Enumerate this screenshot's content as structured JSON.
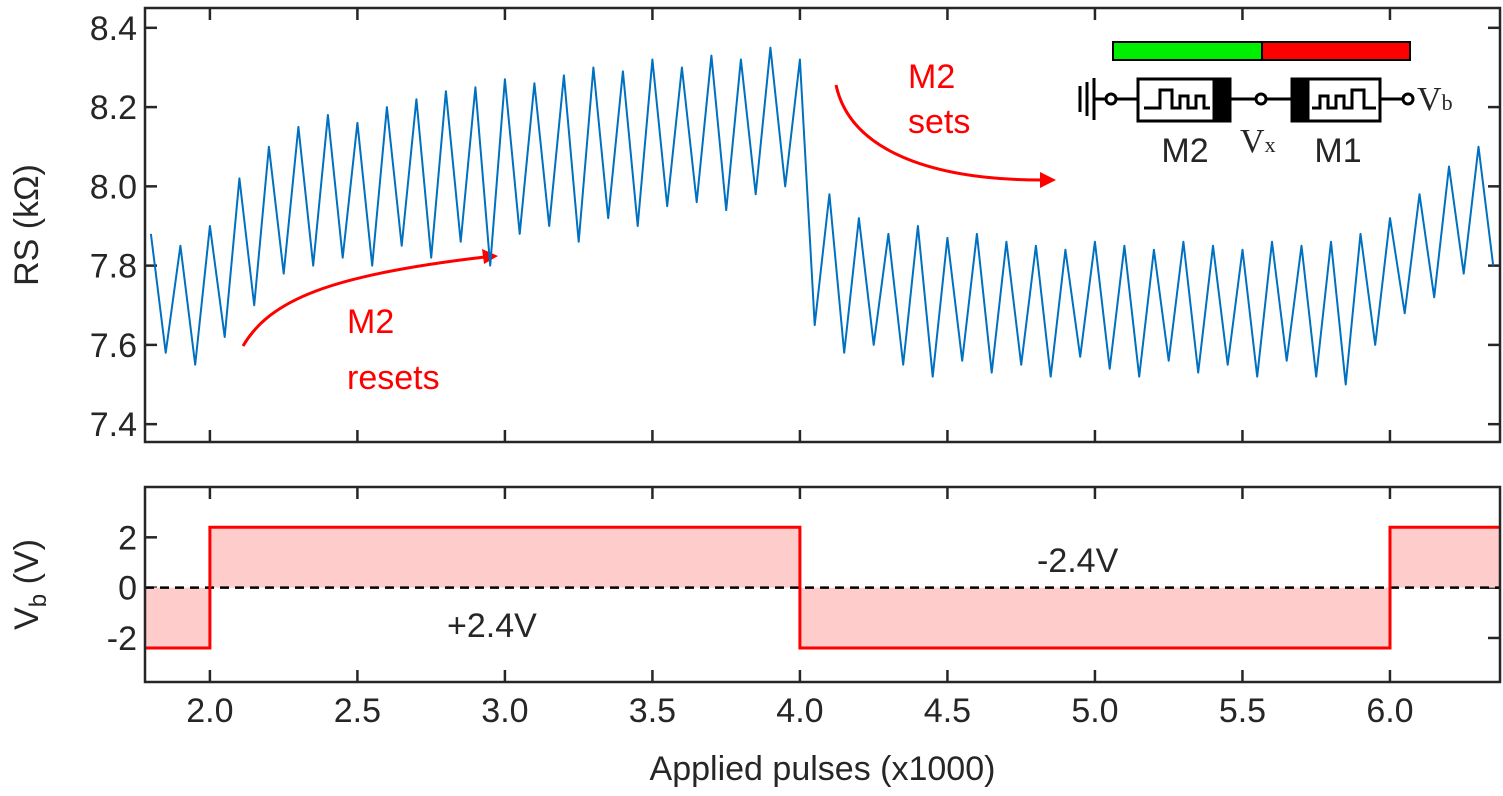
{
  "chart_data": [
    {
      "type": "line",
      "ylabel": "RS (kΩ)",
      "x": [
        1.8,
        1.85,
        1.9,
        1.95,
        2.0,
        2.05,
        2.1,
        2.15,
        2.2,
        2.25,
        2.3,
        2.35,
        2.4,
        2.45,
        2.5,
        2.55,
        2.6,
        2.65,
        2.7,
        2.75,
        2.8,
        2.85,
        2.9,
        2.95,
        3.0,
        3.05,
        3.1,
        3.15,
        3.2,
        3.25,
        3.3,
        3.35,
        3.4,
        3.45,
        3.5,
        3.55,
        3.6,
        3.65,
        3.7,
        3.75,
        3.8,
        3.85,
        3.9,
        3.95,
        4.0,
        4.05,
        4.1,
        4.15,
        4.2,
        4.25,
        4.3,
        4.35,
        4.4,
        4.45,
        4.5,
        4.55,
        4.6,
        4.65,
        4.7,
        4.75,
        4.8,
        4.85,
        4.9,
        4.95,
        5.0,
        5.05,
        5.1,
        5.15,
        5.2,
        5.25,
        5.3,
        5.35,
        5.4,
        5.45,
        5.5,
        5.55,
        5.6,
        5.65,
        5.7,
        5.75,
        5.8,
        5.85,
        5.9,
        5.95,
        6.0,
        6.05,
        6.1,
        6.15,
        6.2,
        6.25,
        6.3,
        6.35
      ],
      "series": [
        {
          "color": "#0070c0",
          "values": [
            7.88,
            7.58,
            7.85,
            7.55,
            7.9,
            7.62,
            8.02,
            7.7,
            8.1,
            7.78,
            8.15,
            7.8,
            8.18,
            7.82,
            8.16,
            7.8,
            8.2,
            7.85,
            8.22,
            7.82,
            8.24,
            7.86,
            8.25,
            7.8,
            8.27,
            7.88,
            8.26,
            7.9,
            8.28,
            7.86,
            8.3,
            7.92,
            8.29,
            7.9,
            8.32,
            7.95,
            8.3,
            7.96,
            8.33,
            7.94,
            8.32,
            7.98,
            8.35,
            8.0,
            8.32,
            7.65,
            7.98,
            7.58,
            7.92,
            7.6,
            7.88,
            7.55,
            7.9,
            7.52,
            7.87,
            7.56,
            7.88,
            7.53,
            7.86,
            7.55,
            7.85,
            7.52,
            7.84,
            7.57,
            7.86,
            7.54,
            7.85,
            7.52,
            7.84,
            7.56,
            7.86,
            7.53,
            7.85,
            7.55,
            7.84,
            7.52,
            7.86,
            7.56,
            7.85,
            7.52,
            7.86,
            7.5,
            7.88,
            7.6,
            7.92,
            7.68,
            7.98,
            7.72,
            8.05,
            7.78,
            8.1,
            7.8
          ]
        }
      ],
      "xlim": [
        1.78,
        6.373
      ],
      "ylim": [
        7.355,
        8.45
      ],
      "yticks": [
        7.4,
        7.6,
        7.8,
        {
          "value": 8,
          "label": "8.0"
        },
        8.2,
        8.4
      ],
      "annotations": [
        [
          "M2",
          "resets"
        ],
        [
          "M2",
          "sets"
        ]
      ],
      "annotation_color": "#ff0000",
      "inset": {
        "labels": [
          "M2",
          "M1"
        ],
        "vx": [
          "V",
          "x"
        ],
        "vb": [
          "V",
          "b"
        ]
      }
    },
    {
      "type": "area",
      "ylabel": [
        "V",
        "b",
        " (V)"
      ],
      "xlabel": "Applied pulses (x1000)",
      "x": [
        1.78,
        2.0,
        2.0,
        4.0,
        4.0,
        6.0,
        6.0,
        6.373
      ],
      "series": [
        {
          "color": "#ff0000",
          "fill": "#ffcccc",
          "values": [
            -2.4,
            -2.4,
            2.4,
            2.4,
            -2.4,
            -2.4,
            2.4,
            2.4
          ]
        }
      ],
      "xlim": [
        1.78,
        6.373
      ],
      "ylim": [
        -3.75,
        4
      ],
      "xticks": [
        {
          "value": 2,
          "label": "2.0"
        },
        2.5,
        {
          "value": 3,
          "label": "3.0"
        },
        3.5,
        {
          "value": 4,
          "label": "4.0"
        },
        4.5,
        {
          "value": 5,
          "label": "5.0"
        },
        5.5,
        {
          "value": 6,
          "label": "6.0"
        }
      ],
      "yticks": [
        -2,
        0,
        2
      ],
      "annotations": [
        "+2.4V",
        "-2.4V"
      ]
    }
  ]
}
